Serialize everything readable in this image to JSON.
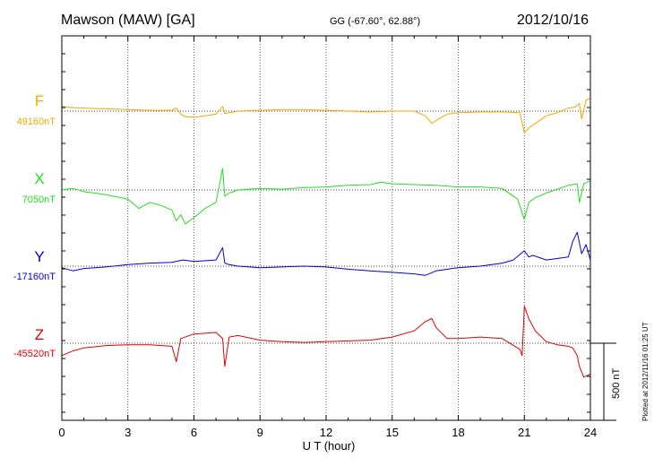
{
  "header": {
    "station": "Mawson (MAW)  [GA]",
    "coords": "GG (-67.60°,  62.88°)",
    "date": "2012/10/16"
  },
  "footer": {
    "xlabel": "U T (hour)",
    "plotted_note": "Plotted at 2012/11/16 01:25 UT",
    "scale_label": "500 nT"
  },
  "chart_data": {
    "type": "line",
    "title": "Mawson (MAW)  [GA]",
    "xlabel": "U T (hour)",
    "ylabel": "",
    "xlim": [
      0,
      24
    ],
    "xticks": [
      0,
      3,
      6,
      9,
      12,
      15,
      18,
      21,
      24
    ],
    "grid": "vertical dotted at every 3 h",
    "scale_bar_nT": 500,
    "series": [
      {
        "name": "F",
        "baseline_label": "49160nT",
        "color": "#f0a800",
        "x": [
          0,
          0.3,
          1,
          2,
          3,
          4,
          5,
          5.2,
          5.4,
          5.6,
          6,
          6.5,
          7,
          7.3,
          7.4,
          7.6,
          8,
          9,
          10,
          11,
          12,
          13,
          14,
          15,
          16,
          16.5,
          16.8,
          17,
          17.5,
          18,
          19,
          20,
          20.8,
          21,
          21.2,
          21.5,
          22,
          22.5,
          23,
          23.3,
          23.5,
          23.6,
          23.8,
          24
        ],
        "values": [
          30,
          25,
          20,
          15,
          10,
          5,
          5,
          20,
          -20,
          -35,
          -40,
          -30,
          -20,
          30,
          -15,
          -10,
          0,
          5,
          10,
          10,
          5,
          0,
          -5,
          0,
          0,
          -30,
          -80,
          -60,
          -20,
          -10,
          -5,
          -5,
          -10,
          -140,
          -110,
          -80,
          -30,
          -10,
          20,
          25,
          50,
          -50,
          70,
          85
        ]
      },
      {
        "name": "X",
        "baseline_label": "7050nT",
        "color": "#22dd22",
        "x": [
          0,
          0.5,
          1,
          2,
          3,
          3.5,
          4,
          4.5,
          5,
          5.2,
          5.4,
          5.6,
          6,
          6.5,
          7,
          7.3,
          7.4,
          7.6,
          8,
          9,
          10,
          11,
          12,
          13,
          14,
          14.5,
          15,
          16,
          17,
          18,
          19,
          20,
          20.7,
          20.9,
          21,
          21.2,
          21.5,
          22,
          23,
          23.4,
          23.5,
          23.7,
          24
        ],
        "values": [
          0,
          10,
          -10,
          -30,
          -60,
          -120,
          -80,
          -100,
          -130,
          -200,
          -160,
          -220,
          -180,
          -120,
          -80,
          140,
          -40,
          -20,
          0,
          10,
          5,
          15,
          20,
          30,
          35,
          50,
          40,
          35,
          30,
          20,
          20,
          10,
          -60,
          -150,
          -190,
          -80,
          -50,
          -20,
          30,
          40,
          -80,
          40,
          60
        ]
      },
      {
        "name": "Y",
        "baseline_label": "-17160nT",
        "color": "#0000dd",
        "x": [
          0,
          0.5,
          1,
          2,
          3,
          4,
          5,
          5.5,
          6,
          7,
          7.3,
          7.4,
          7.6,
          8,
          9,
          10,
          11,
          12,
          13,
          14,
          15,
          16,
          16.5,
          17,
          18,
          19,
          20,
          20.5,
          21,
          21.2,
          21.4,
          22,
          23,
          23.2,
          23.4,
          23.6,
          23.8,
          24
        ],
        "values": [
          -10,
          -30,
          -15,
          -5,
          10,
          20,
          25,
          40,
          30,
          40,
          120,
          20,
          10,
          0,
          -10,
          -5,
          0,
          -5,
          -20,
          -30,
          -40,
          -50,
          -60,
          -30,
          -10,
          0,
          20,
          40,
          100,
          60,
          70,
          40,
          60,
          160,
          220,
          80,
          140,
          40
        ]
      },
      {
        "name": "Z",
        "baseline_label": "-45520nT",
        "color": "#e00000",
        "x": [
          0,
          0.5,
          1,
          2,
          3,
          4,
          5,
          5.2,
          5.4,
          6,
          7,
          7.3,
          7.4,
          7.6,
          8,
          9,
          10,
          11,
          12,
          13,
          14,
          15,
          16,
          16.5,
          16.8,
          17,
          17.5,
          18,
          19,
          20,
          20.8,
          20.9,
          21,
          21.2,
          21.5,
          22,
          22.5,
          23,
          23.2,
          23.4,
          23.5,
          23.7,
          24
        ],
        "values": [
          -80,
          -50,
          -30,
          -15,
          -10,
          -10,
          -20,
          -120,
          30,
          60,
          70,
          30,
          -150,
          40,
          50,
          20,
          10,
          5,
          10,
          15,
          20,
          40,
          80,
          140,
          160,
          100,
          30,
          30,
          40,
          30,
          -40,
          -80,
          240,
          160,
          80,
          10,
          -10,
          -20,
          -30,
          -80,
          -150,
          -220,
          -200
        ]
      }
    ]
  }
}
